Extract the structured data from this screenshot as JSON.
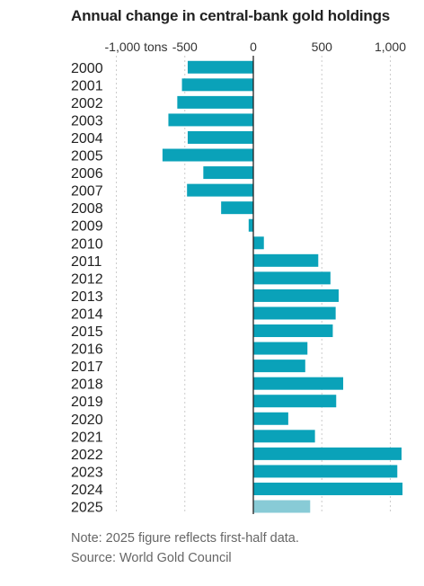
{
  "chart_data": {
    "type": "bar",
    "orientation": "horizontal",
    "title": "Annual change in central-bank gold holdings",
    "categories": [
      "2000",
      "2001",
      "2002",
      "2003",
      "2004",
      "2005",
      "2006",
      "2007",
      "2008",
      "2009",
      "2010",
      "2011",
      "2012",
      "2013",
      "2014",
      "2015",
      "2016",
      "2017",
      "2018",
      "2019",
      "2020",
      "2021",
      "2022",
      "2023",
      "2024",
      "2025"
    ],
    "values": [
      -479,
      -521,
      -555,
      -620,
      -479,
      -663,
      -365,
      -484,
      -235,
      -34,
      77,
      474,
      563,
      623,
      601,
      580,
      395,
      379,
      656,
      605,
      255,
      450,
      1082,
      1051,
      1089,
      415
    ],
    "x_ticks": [
      {
        "value": -1000,
        "label": "-1,000 tons"
      },
      {
        "value": -500,
        "label": "-500"
      },
      {
        "value": 0,
        "label": "0"
      },
      {
        "value": 500,
        "label": "500"
      },
      {
        "value": 1000,
        "label": "1,000"
      }
    ],
    "xlim": [
      -1000,
      1100
    ],
    "grid": true,
    "highlight_index": 25,
    "colors": {
      "bar": "#0aa2b9",
      "highlight": "#88cbd6",
      "zero_line": "#222222",
      "grid": "#cccccc"
    }
  },
  "notes": {
    "note": "Note: 2025 figure reflects first-half data.",
    "source": "Source: World Gold Council"
  }
}
